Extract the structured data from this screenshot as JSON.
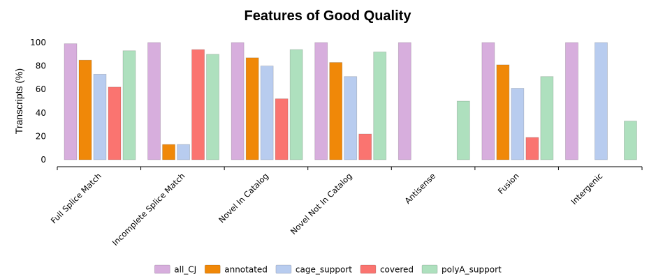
{
  "chart_data": {
    "type": "bar",
    "title": "Features of Good Quality",
    "xlabel": "",
    "ylabel": "Transcripts (%)",
    "ylim": [
      0,
      100
    ],
    "yticks": [
      0,
      20,
      40,
      60,
      80,
      100
    ],
    "legend_position": "bottom",
    "categories": [
      "Full Splice Match",
      "Incomplete Splice Match",
      "Novel In Catalog",
      "Novel Not In Catalog",
      "Antisense",
      "Fusion",
      "Intergenic"
    ],
    "series": [
      {
        "name": "all_CJ",
        "color": "#d7aedd",
        "values": [
          99,
          100,
          100,
          100,
          100,
          100,
          100
        ]
      },
      {
        "name": "annotated",
        "color": "#f08808",
        "values": [
          85,
          13,
          87,
          83,
          null,
          81,
          null
        ]
      },
      {
        "name": "cage_support",
        "color": "#b8ccef",
        "values": [
          73,
          13,
          80,
          71,
          null,
          61,
          100
        ]
      },
      {
        "name": "covered",
        "color": "#fa7470",
        "values": [
          62,
          94,
          52,
          22,
          null,
          19,
          null
        ]
      },
      {
        "name": "polyA_support",
        "color": "#aee0be",
        "values": [
          93,
          90,
          94,
          92,
          50,
          71,
          33
        ]
      }
    ]
  }
}
